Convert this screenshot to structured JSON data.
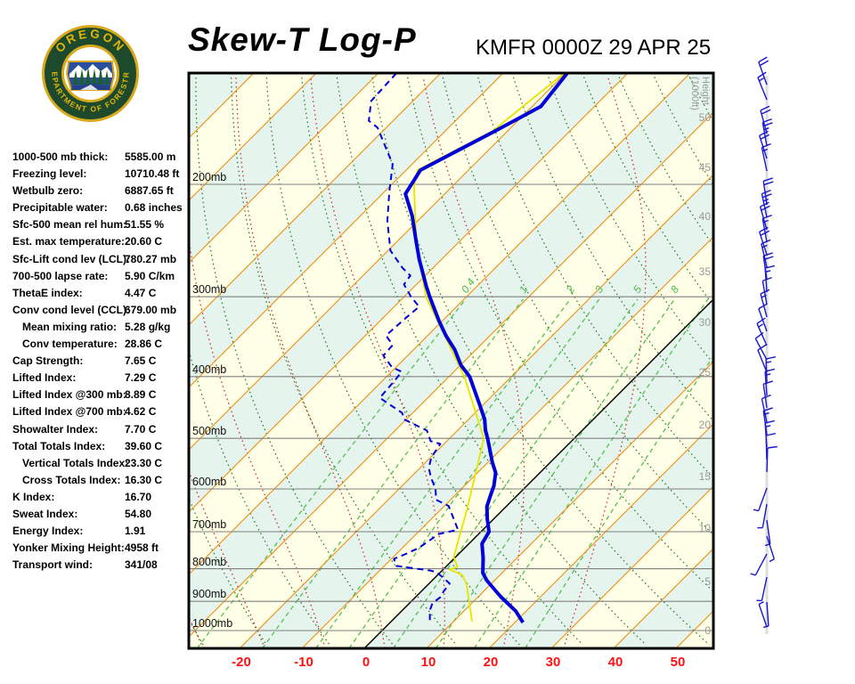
{
  "header": {
    "title": "Skew-T Log-P",
    "station_line": "KMFR 0000Z 29 APR 25"
  },
  "logo": {
    "name": "oregon-department-of-forestry-seal",
    "text_top": "OREGON",
    "text_bottom": "DEPARTMENT OF FORESTRY",
    "ring_color": "#1D4A2C",
    "gold_color": "#D8A91C",
    "scene_blue": "#2A4F9E",
    "tree_green": "#1E5C31"
  },
  "indices": [
    {
      "label": "1000-500 mb thick:",
      "value": "5585.00 m",
      "indent": false
    },
    {
      "label": "Freezing level:",
      "value": "10710.48 ft",
      "indent": false
    },
    {
      "label": "Wetbulb zero:",
      "value": "6887.65 ft",
      "indent": false
    },
    {
      "label": "Precipitable water:",
      "value": "0.68 inches",
      "indent": false
    },
    {
      "label": "Sfc-500 mean rel hum:",
      "value": "51.55 %",
      "indent": false
    },
    {
      "label": "Est. max temperature:",
      "value": "20.60 C",
      "indent": false
    },
    {
      "label": "Sfc-Lift cond lev (LCL):",
      "value": "780.27 mb",
      "indent": false
    },
    {
      "label": "700-500 lapse rate:",
      "value": "5.90 C/km",
      "indent": false
    },
    {
      "label": "ThetaE index:",
      "value": "4.47 C",
      "indent": false
    },
    {
      "label": "Conv cond level (CCL):",
      "value": "679.00 mb",
      "indent": false
    },
    {
      "label": "Mean mixing ratio:",
      "value": "5.28 g/kg",
      "indent": true
    },
    {
      "label": "Conv temperature:",
      "value": "28.86 C",
      "indent": true
    },
    {
      "label": "Cap Strength:",
      "value": "7.65 C",
      "indent": false
    },
    {
      "label": "Lifted Index:",
      "value": "7.29 C",
      "indent": false
    },
    {
      "label": "Lifted Index @300 mb:",
      "value": "8.89 C",
      "indent": false
    },
    {
      "label": "Lifted Index @700 mb:",
      "value": "4.62 C",
      "indent": false
    },
    {
      "label": "Showalter Index:",
      "value": "7.70 C",
      "indent": false
    },
    {
      "label": "Total Totals Index:",
      "value": "39.60 C",
      "indent": false
    },
    {
      "label": "Vertical Totals Index:",
      "value": "23.30 C",
      "indent": true
    },
    {
      "label": "Cross Totals Index:",
      "value": "16.30 C",
      "indent": true
    },
    {
      "label": "K Index:",
      "value": "16.70",
      "indent": false
    },
    {
      "label": "Sweat Index:",
      "value": "54.80",
      "indent": false
    },
    {
      "label": "Energy Index:",
      "value": "1.91",
      "indent": false
    },
    {
      "label": "Yonker Mixing Height:",
      "value": "4958 ft",
      "indent": false
    },
    {
      "label": "Transport wind:",
      "value": "341/08",
      "indent": false
    }
  ],
  "chart_data": {
    "type": "skewt-log-p",
    "band_colors": {
      "mint": "#E5F4EC",
      "cream": "#FFFEE6"
    },
    "isotherms": {
      "min": -150,
      "max": 50,
      "step": 10,
      "color": "#EF8E0F",
      "zero_line_color": "#000000"
    },
    "pressure_levels_mb": [
      200,
      300,
      400,
      500,
      600,
      700,
      800,
      900,
      1000
    ],
    "pressure_label_suffix": "mb",
    "pressure_line_color": "#808080",
    "dry_adiabats": {
      "theta_min_c": -40,
      "theta_max_c": 180,
      "step": 10,
      "color": "#1B7A1B"
    },
    "moist_adiabats": {
      "thetaw_values_c": [
        -60,
        -50,
        -40,
        -30,
        -20,
        -10,
        0,
        10,
        20,
        30
      ],
      "color": "#CC2020"
    },
    "mixing_ratio": {
      "values_gkg": [
        0.4,
        1,
        2,
        3,
        5,
        8,
        12,
        20
      ],
      "labeled_values": [
        "0.4",
        "1",
        "2",
        "3",
        "5",
        "8"
      ],
      "color": "#55C055",
      "label_color": "#4CBB4C"
    },
    "temp_axis": {
      "ticks_c": [
        -20,
        -10,
        0,
        10,
        20,
        30,
        40,
        50
      ],
      "color": "#FF1111"
    },
    "height_axis": {
      "title_lines": [
        "Height",
        "(1000ft)"
      ],
      "color": "#999999",
      "ticks": [
        [
          "50",
          132
        ],
        [
          "45",
          188
        ],
        [
          "40",
          243
        ],
        [
          "35",
          305
        ],
        [
          "30",
          362
        ],
        [
          "25",
          418
        ],
        [
          "20",
          477
        ],
        [
          "15",
          535
        ],
        [
          "10",
          593
        ],
        [
          "5",
          653
        ],
        [
          "0",
          708
        ]
      ]
    },
    "series": [
      {
        "name": "temperature",
        "color": "#0000D8",
        "width": 4,
        "dash": "",
        "points_p_t": [
          [
            134,
            -59.7
          ],
          [
            151,
            -58.6
          ],
          [
            165,
            -62.0
          ],
          [
            190,
            -67.7
          ],
          [
            207,
            -66.3
          ],
          [
            224,
            -61.7
          ],
          [
            246,
            -56.9
          ],
          [
            262,
            -53.6
          ],
          [
            289,
            -48.1
          ],
          [
            300,
            -45.9
          ],
          [
            327,
            -40.6
          ],
          [
            345,
            -37.1
          ],
          [
            363,
            -33.4
          ],
          [
            384,
            -29.9
          ],
          [
            400,
            -26.7
          ],
          [
            444,
            -20.4
          ],
          [
            467,
            -17.4
          ],
          [
            485,
            -15.6
          ],
          [
            500,
            -13.9
          ],
          [
            545,
            -9.3
          ],
          [
            566,
            -7.1
          ],
          [
            593,
            -5.3
          ],
          [
            618,
            -4.1
          ],
          [
            639,
            -3.1
          ],
          [
            669,
            -1.0
          ],
          [
            700,
            1.3
          ],
          [
            731,
            2.1
          ],
          [
            770,
            4.6
          ],
          [
            812,
            6.9
          ],
          [
            834,
            8.7
          ],
          [
            885,
            13.6
          ],
          [
            932,
            18.3
          ],
          [
            971,
            21.3
          ]
        ]
      },
      {
        "name": "dewpoint",
        "color": "#0000D8",
        "width": 2,
        "dash": "7 5",
        "points_p_t": [
          [
            134,
            -87.1
          ],
          [
            148,
            -86.7
          ],
          [
            159,
            -83.9
          ],
          [
            163,
            -81.4
          ],
          [
            186,
            -73.1
          ],
          [
            205,
            -69.3
          ],
          [
            228,
            -64.9
          ],
          [
            254,
            -59.6
          ],
          [
            270,
            -55.0
          ],
          [
            278,
            -52.4
          ],
          [
            287,
            -52.0
          ],
          [
            300,
            -48.9
          ],
          [
            311,
            -46.0
          ],
          [
            327,
            -46.4
          ],
          [
            345,
            -46.7
          ],
          [
            357,
            -44.1
          ],
          [
            371,
            -43.9
          ],
          [
            387,
            -40.6
          ],
          [
            393,
            -38.4
          ],
          [
            404,
            -38.1
          ],
          [
            432,
            -37.7
          ],
          [
            456,
            -31.7
          ],
          [
            467,
            -30.3
          ],
          [
            486,
            -24.9
          ],
          [
            505,
            -22.6
          ],
          [
            510,
            -20.6
          ],
          [
            535,
            -19.9
          ],
          [
            556,
            -18.6
          ],
          [
            576,
            -16.7
          ],
          [
            598,
            -14.3
          ],
          [
            624,
            -12.3
          ],
          [
            638,
            -9.3
          ],
          [
            695,
            -4.0
          ],
          [
            706,
            -6.4
          ],
          [
            743,
            -7.4
          ],
          [
            760,
            -8.6
          ],
          [
            772,
            -9.6
          ],
          [
            792,
            -8.1
          ],
          [
            805,
            -2.0
          ],
          [
            810,
            -0.6
          ],
          [
            844,
            3.3
          ],
          [
            869,
            3.6
          ],
          [
            886,
            4.0
          ],
          [
            906,
            3.7
          ],
          [
            929,
            4.4
          ],
          [
            972,
            6.4
          ]
        ]
      },
      {
        "name": "wetbulb",
        "color": "#E8E400",
        "width": 1.8,
        "dash": "",
        "points_p_t": [
          [
            134,
            -60.2
          ],
          [
            165,
            -62.4
          ],
          [
            190,
            -68.2
          ],
          [
            202,
            -66.0
          ],
          [
            249,
            -56.3
          ],
          [
            300,
            -46.5
          ],
          [
            401,
            -27.4
          ],
          [
            500,
            -14.5
          ],
          [
            650,
            -5.6
          ],
          [
            703,
            -3.1
          ],
          [
            767,
            -0.3
          ],
          [
            795,
            1.9
          ],
          [
            802,
            1.0
          ],
          [
            818,
            3.9
          ],
          [
            844,
            6.0
          ],
          [
            883,
            8.3
          ],
          [
            929,
            10.9
          ],
          [
            968,
            13.0
          ]
        ]
      }
    ],
    "wind_barbs": {
      "color": "#1818CC",
      "column_line_color": "#DDDDDD",
      "barbs_y_dir_spd": [
        [
          95,
          340,
          20
        ],
        [
          112,
          338,
          15
        ],
        [
          150,
          345,
          20
        ],
        [
          164,
          350,
          25
        ],
        [
          178,
          342,
          20
        ],
        [
          192,
          348,
          15
        ],
        [
          230,
          352,
          20
        ],
        [
          244,
          348,
          25
        ],
        [
          258,
          344,
          20
        ],
        [
          272,
          350,
          15
        ],
        [
          286,
          342,
          20
        ],
        [
          300,
          347,
          15
        ],
        [
          314,
          352,
          20
        ],
        [
          328,
          356,
          15
        ],
        [
          342,
          350,
          10
        ],
        [
          356,
          345,
          15
        ],
        [
          372,
          340,
          10
        ],
        [
          388,
          336,
          15
        ],
        [
          404,
          332,
          10
        ],
        [
          418,
          338,
          10
        ],
        [
          430,
          358,
          15
        ],
        [
          444,
          356,
          15
        ],
        [
          458,
          352,
          10
        ],
        [
          474,
          348,
          10
        ],
        [
          488,
          352,
          15
        ],
        [
          502,
          356,
          15
        ],
        [
          516,
          358,
          10
        ],
        [
          530,
          2,
          10
        ],
        [
          548,
          200,
          5
        ],
        [
          566,
          190,
          5
        ],
        [
          584,
          172,
          5
        ],
        [
          602,
          162,
          5
        ],
        [
          622,
          208,
          8
        ],
        [
          648,
          192,
          5
        ],
        [
          676,
          176,
          5
        ],
        [
          704,
          341,
          8
        ]
      ]
    }
  }
}
